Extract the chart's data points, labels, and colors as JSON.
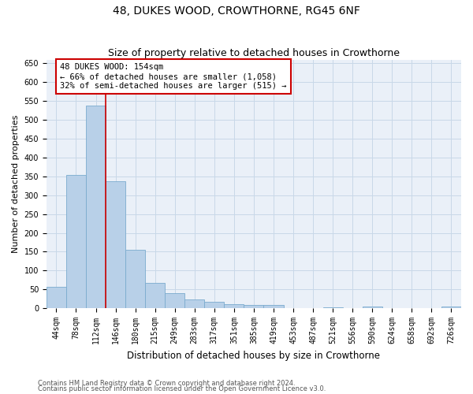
{
  "title": "48, DUKES WOOD, CROWTHORNE, RG45 6NF",
  "subtitle": "Size of property relative to detached houses in Crowthorne",
  "xlabel": "Distribution of detached houses by size in Crowthorne",
  "ylabel": "Number of detached properties",
  "categories": [
    "44sqm",
    "78sqm",
    "112sqm",
    "146sqm",
    "180sqm",
    "215sqm",
    "249sqm",
    "283sqm",
    "317sqm",
    "351sqm",
    "385sqm",
    "419sqm",
    "453sqm",
    "487sqm",
    "521sqm",
    "556sqm",
    "590sqm",
    "624sqm",
    "658sqm",
    "692sqm",
    "726sqm"
  ],
  "values": [
    57,
    354,
    539,
    337,
    155,
    68,
    41,
    23,
    18,
    11,
    8,
    8,
    0,
    0,
    3,
    0,
    4,
    0,
    0,
    0,
    4
  ],
  "bar_color": "#b8d0e8",
  "bar_edgecolor": "#7aabce",
  "vline_pos": 2.5,
  "annotation_text": "48 DUKES WOOD: 154sqm\n← 66% of detached houses are smaller (1,058)\n32% of semi-detached houses are larger (515) →",
  "annotation_box_facecolor": "#ffffff",
  "annotation_box_edgecolor": "#cc0000",
  "ylim": [
    0,
    660
  ],
  "yticks": [
    0,
    50,
    100,
    150,
    200,
    250,
    300,
    350,
    400,
    450,
    500,
    550,
    600,
    650
  ],
  "footer1": "Contains HM Land Registry data © Crown copyright and database right 2024.",
  "footer2": "Contains public sector information licensed under the Open Government Licence v3.0.",
  "grid_color": "#c8d8e8",
  "plot_bg_color": "#eaf0f8",
  "fig_bg_color": "#ffffff",
  "title_fontsize": 10,
  "subtitle_fontsize": 9,
  "tick_fontsize": 7,
  "ylabel_fontsize": 8,
  "xlabel_fontsize": 8.5,
  "annotation_fontsize": 7.5,
  "footer_fontsize": 6,
  "vline_color": "#cc0000"
}
